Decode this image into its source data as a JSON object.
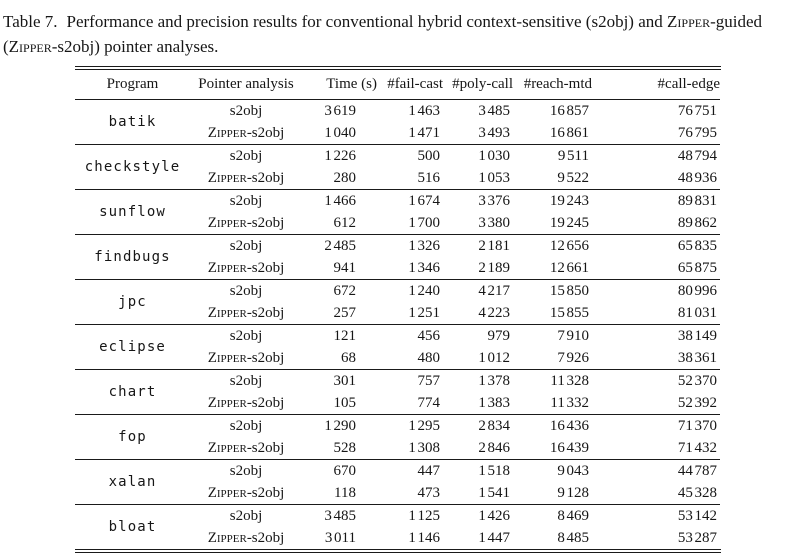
{
  "caption": {
    "label": "Table 7.",
    "line1_text": "Performance and precision results for conventional hybrid context-sensitive (s2obj) and ",
    "line1_smallcaps": "Zipper",
    "line1_suffix": "-guided",
    "line2_prefix": "(",
    "line2_smallcaps": "Zipper",
    "line2_suffix": "-s2obj) pointer analyses."
  },
  "table": {
    "smallcaps_prefix": "Zipper",
    "columns": [
      "Program",
      "Pointer analysis",
      "Time (s)",
      "#fail-cast",
      "#poly-call",
      "#reach-mtd",
      "#call-edge"
    ],
    "groups": [
      {
        "program": "batik",
        "rows": [
          {
            "analysis": "s2obj",
            "values": [
              "3 619",
              "1 463",
              "3 485",
              "16 857",
              "76 751"
            ]
          },
          {
            "analysis": "Zipper-s2obj",
            "values": [
              "1 040",
              "1 471",
              "3 493",
              "16 861",
              "76 795"
            ]
          }
        ]
      },
      {
        "program": "checkstyle",
        "rows": [
          {
            "analysis": "s2obj",
            "values": [
              "1 226",
              "500",
              "1 030",
              "9 511",
              "48 794"
            ]
          },
          {
            "analysis": "Zipper-s2obj",
            "values": [
              "280",
              "516",
              "1 053",
              "9 522",
              "48 936"
            ]
          }
        ]
      },
      {
        "program": "sunflow",
        "rows": [
          {
            "analysis": "s2obj",
            "values": [
              "1 466",
              "1 674",
              "3 376",
              "19 243",
              "89 831"
            ]
          },
          {
            "analysis": "Zipper-s2obj",
            "values": [
              "612",
              "1 700",
              "3 380",
              "19 245",
              "89 862"
            ]
          }
        ]
      },
      {
        "program": "findbugs",
        "rows": [
          {
            "analysis": "s2obj",
            "values": [
              "2 485",
              "1 326",
              "2 181",
              "12 656",
              "65 835"
            ]
          },
          {
            "analysis": "Zipper-s2obj",
            "values": [
              "941",
              "1 346",
              "2 189",
              "12 661",
              "65 875"
            ]
          }
        ]
      },
      {
        "program": "jpc",
        "rows": [
          {
            "analysis": "s2obj",
            "values": [
              "672",
              "1 240",
              "4 217",
              "15 850",
              "80 996"
            ]
          },
          {
            "analysis": "Zipper-s2obj",
            "values": [
              "257",
              "1 251",
              "4 223",
              "15 855",
              "81 031"
            ]
          }
        ]
      },
      {
        "program": "eclipse",
        "rows": [
          {
            "analysis": "s2obj",
            "values": [
              "121",
              "456",
              "979",
              "7 910",
              "38 149"
            ]
          },
          {
            "analysis": "Zipper-s2obj",
            "values": [
              "68",
              "480",
              "1 012",
              "7 926",
              "38 361"
            ]
          }
        ]
      },
      {
        "program": "chart",
        "rows": [
          {
            "analysis": "s2obj",
            "values": [
              "301",
              "757",
              "1 378",
              "11 328",
              "52 370"
            ]
          },
          {
            "analysis": "Zipper-s2obj",
            "values": [
              "105",
              "774",
              "1 383",
              "11 332",
              "52 392"
            ]
          }
        ]
      },
      {
        "program": "fop",
        "rows": [
          {
            "analysis": "s2obj",
            "values": [
              "1 290",
              "1 295",
              "2 834",
              "16 436",
              "71 370"
            ]
          },
          {
            "analysis": "Zipper-s2obj",
            "values": [
              "528",
              "1 308",
              "2 846",
              "16 439",
              "71 432"
            ]
          }
        ]
      },
      {
        "program": "xalan",
        "rows": [
          {
            "analysis": "s2obj",
            "values": [
              "670",
              "447",
              "1 518",
              "9 043",
              "44 787"
            ]
          },
          {
            "analysis": "Zipper-s2obj",
            "values": [
              "118",
              "473",
              "1 541",
              "9 128",
              "45 328"
            ]
          }
        ]
      },
      {
        "program": "bloat",
        "rows": [
          {
            "analysis": "s2obj",
            "values": [
              "3 485",
              "1 125",
              "1 426",
              "8 469",
              "53 142"
            ]
          },
          {
            "analysis": "Zipper-s2obj",
            "values": [
              "3 011",
              "1 146",
              "1 447",
              "8 485",
              "53 287"
            ]
          }
        ]
      }
    ]
  }
}
